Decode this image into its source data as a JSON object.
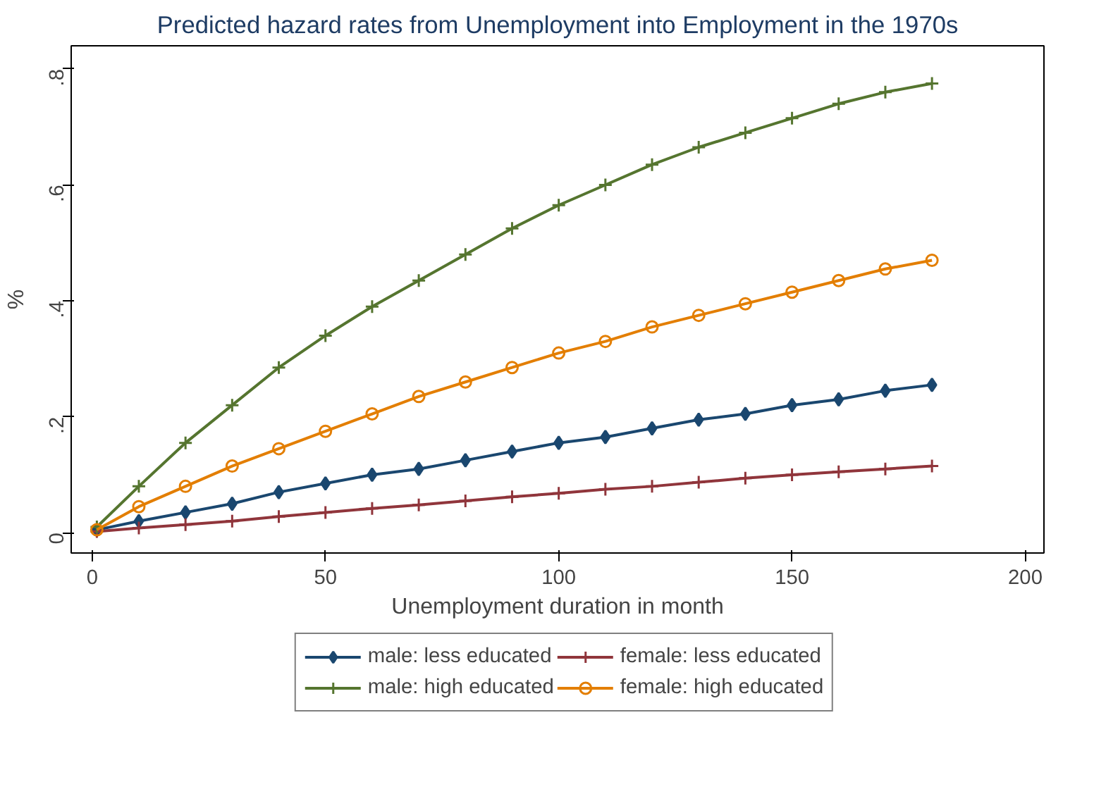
{
  "chart_data": {
    "type": "line",
    "title": "Predicted hazard rates from Unemployment into Employment in the 1970s",
    "xlabel": "Unemployment duration in month",
    "ylabel": "%",
    "x": [
      1,
      10,
      20,
      30,
      40,
      50,
      60,
      70,
      80,
      90,
      100,
      110,
      120,
      130,
      140,
      150,
      160,
      170,
      180
    ],
    "series": [
      {
        "name": "male: less educated",
        "color": "#1a476f",
        "marker": "diamond",
        "values": [
          0.005,
          0.02,
          0.035,
          0.05,
          0.07,
          0.085,
          0.1,
          0.11,
          0.125,
          0.14,
          0.155,
          0.165,
          0.18,
          0.195,
          0.205,
          0.22,
          0.23,
          0.245,
          0.255
        ]
      },
      {
        "name": "female: less educated",
        "color": "#90353b",
        "marker": "cross",
        "values": [
          0.002,
          0.008,
          0.014,
          0.02,
          0.028,
          0.035,
          0.042,
          0.048,
          0.055,
          0.062,
          0.068,
          0.075,
          0.08,
          0.087,
          0.094,
          0.1,
          0.105,
          0.11,
          0.115
        ]
      },
      {
        "name": "male: high educated",
        "color": "#55752f",
        "marker": "cross",
        "values": [
          0.01,
          0.08,
          0.155,
          0.22,
          0.285,
          0.34,
          0.39,
          0.435,
          0.48,
          0.525,
          0.565,
          0.6,
          0.635,
          0.665,
          0.69,
          0.715,
          0.74,
          0.76,
          0.775
        ]
      },
      {
        "name": "female: high educated",
        "color": "#e37e00",
        "marker": "circle",
        "values": [
          0.005,
          0.045,
          0.08,
          0.115,
          0.145,
          0.175,
          0.205,
          0.235,
          0.26,
          0.285,
          0.31,
          0.33,
          0.355,
          0.375,
          0.395,
          0.415,
          0.435,
          0.455,
          0.47
        ]
      }
    ],
    "xlim": [
      -4.5,
      204
    ],
    "ylim": [
      -0.035,
      0.84
    ],
    "xticks": [
      0,
      50,
      100,
      150,
      200
    ],
    "yticks": [
      0,
      {
        "value": 0.2,
        "label": ".2"
      },
      {
        "value": 0.4,
        "label": ".4"
      },
      {
        "value": 0.6,
        "label": ".6"
      },
      {
        "value": 0.8,
        "label": ".8"
      }
    ],
    "legend": "bottom",
    "line_style": "solid"
  }
}
